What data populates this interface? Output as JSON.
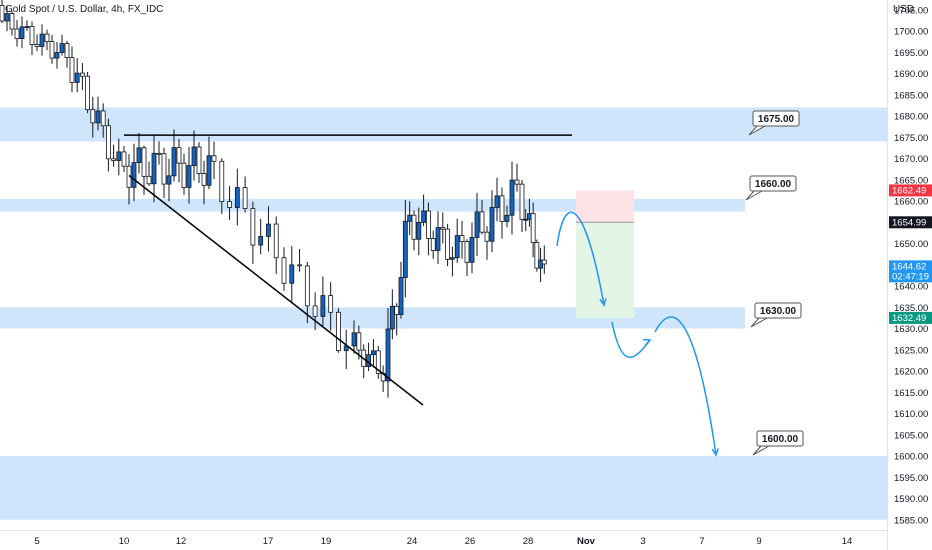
{
  "header": {
    "symbol_title": "Gold Spot / U.S. Dollar, 4h, FX_IDC",
    "currency": "USD"
  },
  "colors": {
    "zone": "#cfe5fb",
    "candle_up": "#1565c0",
    "candle_down": "#ffffff",
    "wick": "#131722",
    "arrow": "#2196f3",
    "stop_zone": "#fde3e6",
    "target_zone": "#e3f5e5",
    "tag_red": "#f23645",
    "tag_black": "#131722",
    "tag_blue": "#2196f3",
    "tag_green": "#089981"
  },
  "chart_data": {
    "type": "candlestick",
    "title": "Gold Spot / U.S. Dollar, 4h, FX_IDC",
    "ylabel": "USD",
    "ylim": [
      1583,
      1712
    ],
    "y_ticks": [
      "1585.00",
      "1590.00",
      "1595.00",
      "1600.00",
      "1605.00",
      "1610.00",
      "1615.00",
      "1620.00",
      "1625.00",
      "1630.00",
      "1635.00",
      "1640.00",
      "1645.00",
      "1650.00",
      "1655.00",
      "1660.00",
      "1665.00",
      "1670.00",
      "1675.00",
      "1680.00",
      "1685.00",
      "1690.00",
      "1695.00",
      "1700.00",
      "1705.00"
    ],
    "x_ticks": [
      "5",
      "10",
      "12",
      "17",
      "19",
      "24",
      "26",
      "28",
      "Nov",
      "3",
      "7",
      "9",
      "14"
    ],
    "grid": false,
    "zones": [
      {
        "label": "1675.00",
        "from": 1674,
        "to": 1682
      },
      {
        "label": "1660.00",
        "from": 1657.5,
        "to": 1660.5
      },
      {
        "label": "1630.00",
        "from": 1630,
        "to": 1635
      },
      {
        "label": "1600.00",
        "from": 1585,
        "to": 1600
      }
    ],
    "price_tags": [
      {
        "value": "1662.49",
        "kind": "stop"
      },
      {
        "value": "1654.99",
        "kind": "entry"
      },
      {
        "value": "1644.62",
        "countdown": "02:47:19",
        "kind": "last"
      },
      {
        "value": "1632.49",
        "kind": "target"
      }
    ],
    "lines": [
      {
        "name": "horizontal-resistance",
        "from": {
          "x": "10",
          "y": 1675.5
        },
        "to": {
          "x": "28",
          "y": 1675.5
        }
      },
      {
        "name": "descending-trendline",
        "from": {
          "x": "10",
          "y": 1666
        },
        "to": {
          "x": "24",
          "y": 1612
        }
      }
    ],
    "position": {
      "stop": 1662.49,
      "entry": 1654.99,
      "target": 1632.49
    }
  }
}
